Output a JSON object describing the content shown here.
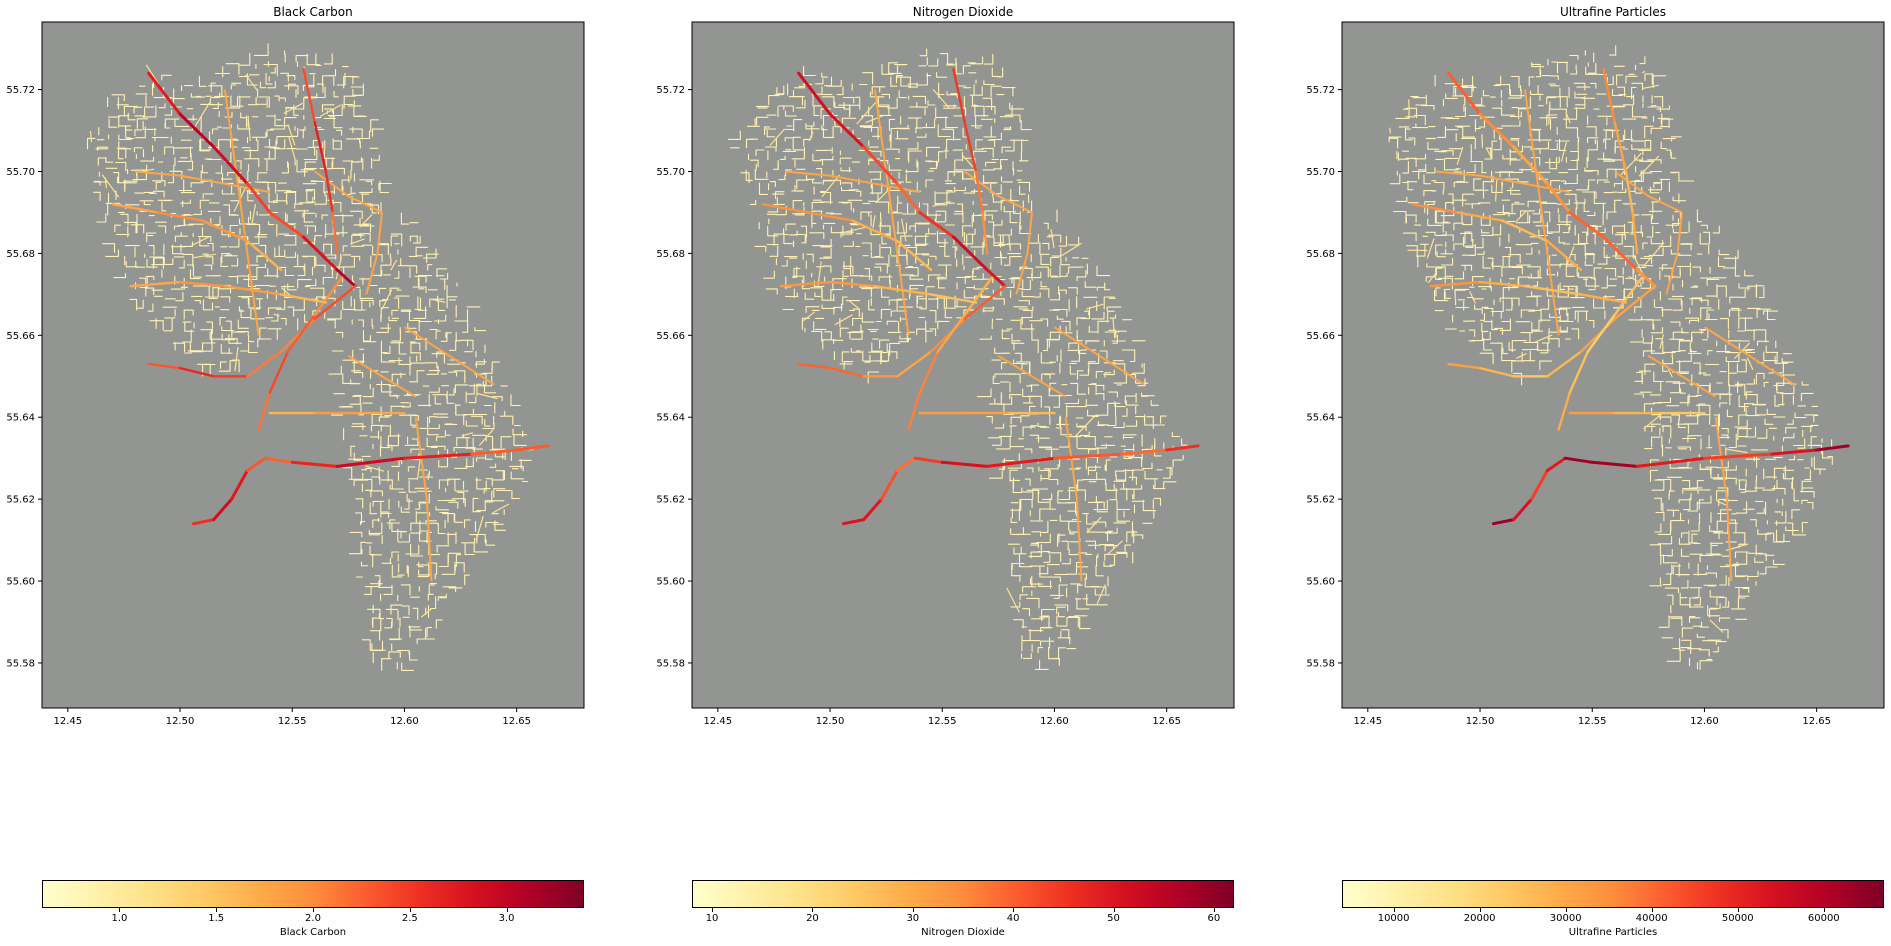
{
  "colors": {
    "background": "#939593",
    "road_low": "#ffffcc",
    "road_mid": "#fd8d3c",
    "road_high": "#800026"
  },
  "panels": [
    {
      "title": "Black Carbon",
      "x_ticks": [
        "12.45",
        "12.50",
        "12.55",
        "12.60",
        "12.65"
      ],
      "y_ticks": [
        "55.72",
        "55.70",
        "55.68",
        "55.66",
        "55.64",
        "55.62",
        "55.60",
        "55.58"
      ],
      "colorbar": {
        "label": "Black Carbon",
        "min": 0.6,
        "max": 3.4,
        "ticks": [
          "1.0",
          "1.5",
          "2.0",
          "2.5",
          "3.0"
        ],
        "tick_values": [
          1.0,
          1.5,
          2.0,
          2.5,
          3.0
        ]
      },
      "hot_ring": 0.82,
      "hot_north": 0.88,
      "hot_west": 0.72
    },
    {
      "title": "Nitrogen Dioxide",
      "x_ticks": [
        "12.45",
        "12.50",
        "12.55",
        "12.60",
        "12.65"
      ],
      "y_ticks": [
        "55.72",
        "55.70",
        "55.68",
        "55.66",
        "55.64",
        "55.62",
        "55.60",
        "55.58"
      ],
      "colorbar": {
        "label": "Nitrogen Dioxide",
        "min": 8,
        "max": 62,
        "ticks": [
          "10",
          "20",
          "30",
          "40",
          "50",
          "60"
        ],
        "tick_values": [
          10,
          20,
          30,
          40,
          50,
          60
        ]
      },
      "hot_ring": 0.8,
      "hot_north": 0.82,
      "hot_west": 0.6
    },
    {
      "title": "Ultrafine Particles",
      "x_ticks": [
        "12.45",
        "12.50",
        "12.55",
        "12.60",
        "12.65"
      ],
      "y_ticks": [
        "55.72",
        "55.70",
        "55.68",
        "55.66",
        "55.64",
        "55.62",
        "55.60",
        "55.58"
      ],
      "colorbar": {
        "label": "Ultrafine Particles",
        "min": 4000,
        "max": 67000,
        "ticks": [
          "10000",
          "20000",
          "30000",
          "40000",
          "50000",
          "60000"
        ],
        "tick_values": [
          10000,
          20000,
          30000,
          40000,
          50000,
          60000
        ]
      },
      "hot_ring": 0.95,
      "hot_north": 0.6,
      "hot_west": 0.45
    }
  ]
}
